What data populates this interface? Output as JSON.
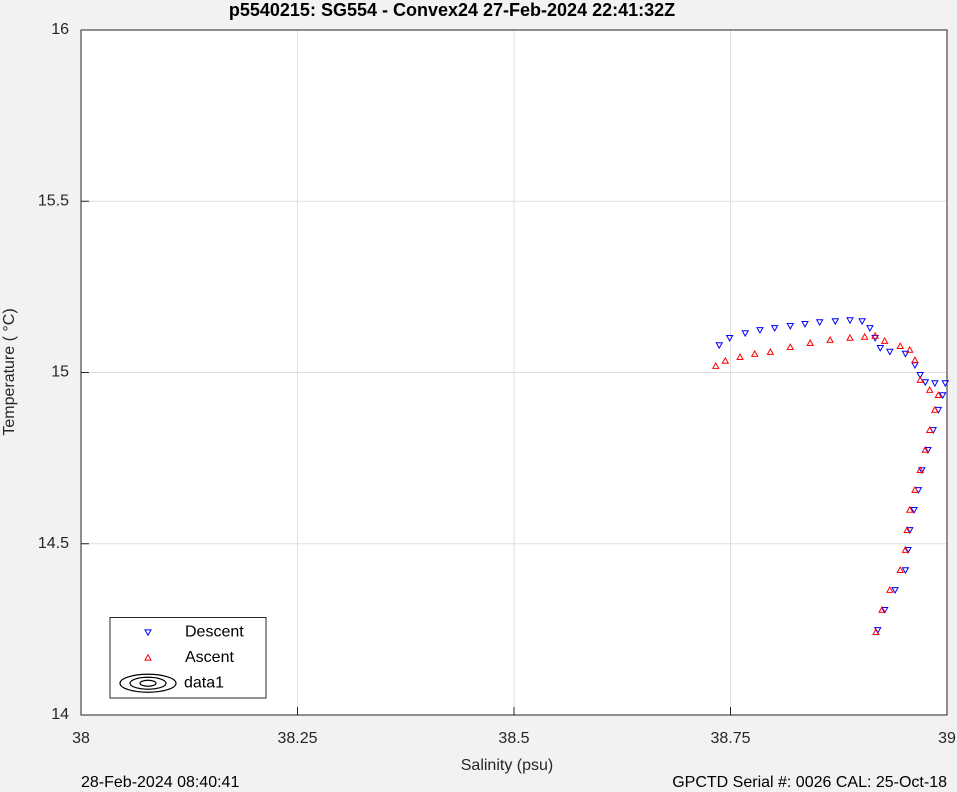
{
  "chart_data": {
    "type": "scatter",
    "title": "p5540215: SG554 - Convex24 27-Feb-2024 22:41:32Z",
    "x_label": "Salinity (psu)",
    "y_label": "Temperature (   °C)",
    "footer_left": "28-Feb-2024 08:40:41",
    "footer_right": "GPCTD Serial #: 0026 CAL: 25-Oct-18",
    "xlim": [
      38,
      39
    ],
    "xticks": [
      38,
      38.25,
      38.5,
      38.75,
      39
    ],
    "ylim": [
      14,
      16
    ],
    "yticks": [
      14,
      14.5,
      15,
      15.5,
      16
    ],
    "grid": true,
    "legend": "lower left",
    "series": [
      {
        "name": "Descent",
        "color": "#0000ff",
        "marker": "triangle-down",
        "x": [
          38.737,
          38.749,
          38.767,
          38.784,
          38.801,
          38.819,
          38.836,
          38.853,
          38.871,
          38.888,
          38.902,
          38.911,
          38.917,
          38.923,
          38.934,
          38.952,
          38.963,
          38.969,
          38.975,
          38.986,
          38.998,
          38.995,
          38.99,
          38.984,
          38.978,
          38.971,
          38.967,
          38.962,
          38.957,
          38.955,
          38.952,
          38.94,
          38.928,
          38.92
        ],
        "y": [
          15.08,
          15.101,
          15.115,
          15.124,
          15.13,
          15.136,
          15.142,
          15.147,
          15.15,
          15.153,
          15.15,
          15.13,
          15.101,
          15.072,
          15.061,
          15.055,
          15.022,
          14.993,
          14.972,
          14.969,
          14.969,
          14.934,
          14.891,
          14.832,
          14.774,
          14.715,
          14.657,
          14.599,
          14.54,
          14.482,
          14.423,
          14.365,
          14.307,
          14.248
        ]
      },
      {
        "name": "Ascent",
        "color": "#ff0000",
        "marker": "triangle-up",
        "x": [
          38.733,
          38.744,
          38.761,
          38.778,
          38.796,
          38.819,
          38.842,
          38.865,
          38.888,
          38.905,
          38.917,
          38.928,
          38.946,
          38.957,
          38.963,
          38.969,
          38.98,
          38.99,
          38.986,
          38.98,
          38.975,
          38.969,
          38.963,
          38.957,
          38.954,
          38.952,
          38.946,
          38.934,
          38.925,
          38.918
        ],
        "y": [
          15.019,
          15.034,
          15.045,
          15.054,
          15.06,
          15.074,
          15.086,
          15.095,
          15.101,
          15.104,
          15.107,
          15.092,
          15.077,
          15.066,
          15.036,
          14.978,
          14.949,
          14.934,
          14.891,
          14.832,
          14.774,
          14.715,
          14.657,
          14.599,
          14.54,
          14.482,
          14.423,
          14.365,
          14.307,
          14.242
        ]
      },
      {
        "name": "data1",
        "color": "#000000",
        "marker": "contour",
        "x": [],
        "y": []
      }
    ]
  }
}
